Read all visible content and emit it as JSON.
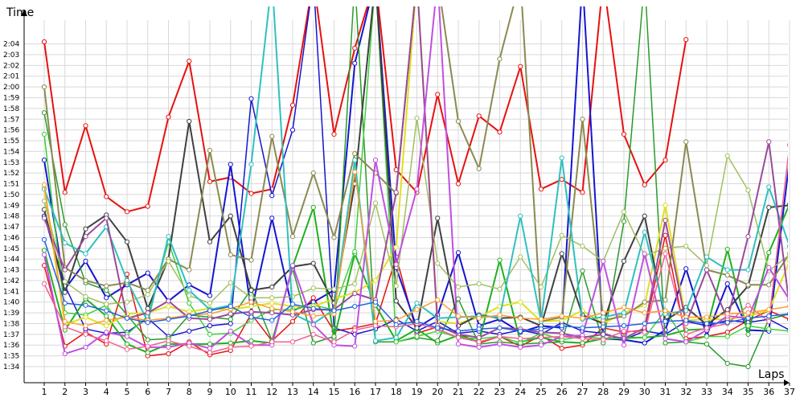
{
  "chart_data": {
    "type": "line",
    "xlabel": "Laps",
    "ylabel": "Time",
    "x": [
      1,
      2,
      3,
      4,
      5,
      6,
      7,
      8,
      9,
      10,
      11,
      12,
      13,
      14,
      15,
      16,
      17,
      18,
      19,
      20,
      21,
      22,
      23,
      24,
      25,
      26,
      27,
      28,
      29,
      30,
      31,
      32,
      33,
      34,
      35,
      36,
      37
    ],
    "ylim": [
      93,
      125
    ],
    "y_ticks": [
      {
        "v": 94,
        "label": "1:34"
      },
      {
        "v": 95,
        "label": "1:35"
      },
      {
        "v": 96,
        "label": "1:36"
      },
      {
        "v": 97,
        "label": "1:37"
      },
      {
        "v": 98,
        "label": "1:38"
      },
      {
        "v": 99,
        "label": "1:39"
      },
      {
        "v": 100,
        "label": "1:40"
      },
      {
        "v": 101,
        "label": "1:41"
      },
      {
        "v": 102,
        "label": "1:42"
      },
      {
        "v": 103,
        "label": "1:43"
      },
      {
        "v": 104,
        "label": "1:44"
      },
      {
        "v": 105,
        "label": "1:45"
      },
      {
        "v": 106,
        "label": "1:46"
      },
      {
        "v": 107,
        "label": "1:47"
      },
      {
        "v": 108,
        "label": "1:48"
      },
      {
        "v": 109,
        "label": "1:49"
      },
      {
        "v": 110,
        "label": "1:50"
      },
      {
        "v": 111,
        "label": "1:51"
      },
      {
        "v": 112,
        "label": "1:52"
      },
      {
        "v": 113,
        "label": "1:53"
      },
      {
        "v": 114,
        "label": "1:54"
      },
      {
        "v": 115,
        "label": "1:55"
      },
      {
        "v": 116,
        "label": "1:56"
      },
      {
        "v": 117,
        "label": "1:57"
      },
      {
        "v": 118,
        "label": "1:58"
      },
      {
        "v": 119,
        "label": "1:59"
      },
      {
        "v": 120,
        "label": "2:00"
      },
      {
        "v": 121,
        "label": "2:01"
      },
      {
        "v": 122,
        "label": "2:02"
      },
      {
        "v": 123,
        "label": "2:03"
      },
      {
        "v": 124,
        "label": "2:04"
      }
    ],
    "grid": true,
    "legend": "none",
    "series": [
      {
        "color": "#e81010",
        "width": 2,
        "values": [
          124.2,
          110.2,
          116.4,
          109.8,
          108.4,
          108.9,
          117.2,
          122.4,
          111.2,
          111.6,
          110.1,
          110.5,
          118.3,
          130,
          115.6,
          123.6,
          130,
          112.3,
          110.2,
          119.3,
          111.0,
          117.3,
          115.8,
          121.9,
          110.5,
          111.4,
          110.2,
          130,
          115.6,
          110.9,
          113.2,
          124.4,
          null,
          null,
          null,
          null,
          null
        ]
      },
      {
        "color": "#e81010",
        "width": 1.5,
        "values": [
          103.4,
          95.9,
          97.2,
          96.1,
          102.6,
          95.0,
          95.2,
          96.3,
          95.1,
          95.5,
          98.9,
          96.4,
          98.2,
          100.4,
          97.3,
          97.6,
          98.0,
          104.2,
          97.1,
          97.7,
          97.1,
          96.2,
          96.8,
          95.9,
          96.9,
          95.7,
          96.0,
          97.6,
          97.2,
          97.4,
          106.2,
          96.6,
          96.8,
          97.2,
          98.3,
          99.2,
          98.4
        ]
      },
      {
        "color": "#1515d0",
        "width": 2,
        "values": [
          113.2,
          101.2,
          103.8,
          100.4,
          101.6,
          102.7,
          100.1,
          101.6,
          100.6,
          112.8,
          99.1,
          107.8,
          99.2,
          100.0,
          101.1,
          122.2,
          130,
          103.2,
          97.6,
          98.8,
          104.6,
          97.8,
          98.4,
          97.2,
          97.8,
          97.6,
          130,
          96.6,
          96.5,
          96.2,
          97.4,
          103.1,
          96.9,
          101.7,
          97.4,
          97.3,
          113.2
        ]
      },
      {
        "color": "#1515d0",
        "width": 1.5,
        "values": [
          108.0,
          101.5,
          97.5,
          97.1,
          97.2,
          98.5,
          96.8,
          97.3,
          97.8,
          98.0,
          118.9,
          109.9,
          116.0,
          130,
          97.6,
          97.0,
          97.5,
          98.4,
          97.3,
          98.2,
          97.1,
          97.3,
          97.0,
          97.4,
          97.0,
          98.1,
          97.3,
          97.1,
          96.5,
          97.3,
          97.0,
          98.2,
          97.8,
          98.3,
          98.1,
          98.4,
          97.4
        ]
      },
      {
        "color": "#20b020",
        "width": 2,
        "values": [
          104.8,
          97.4,
          100.3,
          98.7,
          96.1,
          95.3,
          96.1,
          96.1,
          96.1,
          96.2,
          96.4,
          96.2,
          103.3,
          108.8,
          96.6,
          104.5,
          99.7,
          96.4,
          97.5,
          96.2,
          96.9,
          96.3,
          103.9,
          96.3,
          96.7,
          96.3,
          96.2,
          96.6,
          96.7,
          96.7,
          96.9,
          97.4,
          97.5,
          104.9,
          97.0,
          104.6,
          109.1
        ]
      },
      {
        "color": "#2a9a2a",
        "width": 1.5,
        "values": [
          117.6,
          107.2,
          101.8,
          101.1,
          98.8,
          96.5,
          96.6,
          98.8,
          98.6,
          98.4,
          101.2,
          96.4,
          103.1,
          96.2,
          96.8,
          130,
          96.3,
          96.3,
          96.7,
          96.4,
          100.3,
          96.1,
          96.3,
          96.1,
          96.2,
          96.3,
          102.9,
          96.2,
          107.5,
          130,
          96.2,
          96.3,
          96.1,
          94.3,
          94.0,
          98.4,
          98.9
        ]
      },
      {
        "color": "#3cd03c",
        "width": 1.5,
        "values": [
          115.6,
          99.0,
          98.8,
          99.7,
          97.0,
          98.7,
          105.6,
          99.9,
          97.0,
          97.1,
          98.3,
          99.3,
          99.3,
          99.7,
          99.3,
          104.7,
          130,
          96.3,
          96.8,
          97.3,
          96.7,
          96.6,
          96.8,
          96.2,
          97.1,
          96.5,
          96.8,
          96.6,
          96.6,
          96.7,
          99.2,
          96.3,
          96.8,
          96.8,
          97.8,
          97.5,
          97.3
        ]
      },
      {
        "color": "#e0e020",
        "width": 2,
        "values": [
          110.6,
          97.9,
          98.6,
          97.8,
          98.9,
          99.0,
          99.6,
          99.1,
          99.4,
          99.3,
          99.6,
          99.9,
          99.6,
          99.6,
          100.3,
          100.9,
          102.0,
          105.1,
          130,
          98.2,
          98.0,
          98.6,
          99.6,
          100.0,
          98.2,
          98.3,
          99.2,
          98.0,
          99.0,
          99.7,
          109.0,
          98.3,
          98.4,
          98.4,
          98.7,
          99.2,
          103.8
        ]
      },
      {
        "color": "#404040",
        "width": 2,
        "values": [
          108.6,
          100.9,
          106.8,
          108.1,
          105.6,
          99.4,
          104.0,
          116.8,
          105.6,
          108.0,
          101.1,
          101.4,
          103.3,
          103.6,
          99.9,
          111.0,
          130,
          100.1,
          97.6,
          107.8,
          97.8,
          98.8,
          98.5,
          98.6,
          97.8,
          104.5,
          98.8,
          98.0,
          103.8,
          108.0,
          98.3,
          99.5,
          97.9,
          99.3,
          101.5,
          108.8,
          109.0
        ]
      },
      {
        "color": "#8a8a50",
        "width": 2,
        "values": [
          120.0,
          103.2,
          102.0,
          101.5,
          101.8,
          101.1,
          104.0,
          103.0,
          114.1,
          104.4,
          103.9,
          115.4,
          106.1,
          112.0,
          106.0,
          113.8,
          112.0,
          110.1,
          130,
          130,
          116.8,
          112.4,
          122.6,
          130,
          98.2,
          98.6,
          117.0,
          98.3,
          98.7,
          100.0,
          100.2,
          114.9,
          103.0,
          102.5,
          101.6,
          101.6,
          104.5
        ]
      },
      {
        "color": "#a0c060",
        "width": 1.5,
        "values": [
          109.4,
          101.9,
          100.5,
          99.8,
          100.0,
          100.7,
          103.8,
          100.6,
          99.9,
          101.8,
          100.4,
          100.4,
          100.5,
          101.3,
          101.2,
          101.7,
          109.2,
          101.5,
          117.1,
          103.6,
          101.4,
          101.7,
          101.2,
          104.2,
          101.4,
          106.2,
          105.2,
          103.8,
          108.4,
          104.3,
          105.0,
          105.2,
          103.4,
          113.6,
          110.4,
          102.9,
          104.4
        ]
      },
      {
        "color": "#30c0c0",
        "width": 2,
        "values": [
          110.5,
          105.5,
          104.5,
          107.0,
          102.0,
          98.2,
          106.1,
          101.1,
          99.3,
          99.7,
          112.8,
          130,
          98.9,
          98.0,
          99.3,
          113.2,
          96.4,
          96.7,
          99.9,
          98.5,
          98.6,
          98.7,
          98.6,
          108.0,
          98.2,
          113.4,
          98.4,
          98.6,
          99.0,
          106.5,
          98.9,
          99.2,
          104.2,
          103.0,
          103.0,
          110.7,
          105.2
        ]
      },
      {
        "color": "#9a4a9a",
        "width": 2,
        "values": [
          107.8,
          103.0,
          106.1,
          107.8,
          98.5,
          99.0,
          100.1,
          98.5,
          98.4,
          98.9,
          99.1,
          99.0,
          98.8,
          99.3,
          99.3,
          100.8,
          100.2,
          110.2,
          130,
          97.8,
          97.0,
          96.7,
          97.6,
          97.5,
          97.2,
          97.1,
          96.7,
          97.0,
          96.6,
          97.6,
          107.6,
          98.0,
          103.0,
          98.4,
          106.1,
          114.9,
          99.6
        ]
      },
      {
        "color": "#c050e0",
        "width": 2,
        "values": [
          104.4,
          95.2,
          95.8,
          97.2,
          96.8,
          95.8,
          95.8,
          96.2,
          95.7,
          97.3,
          96.0,
          96.0,
          103.4,
          97.9,
          96.0,
          95.9,
          113.2,
          103.5,
          110.5,
          130,
          96.1,
          95.8,
          96.1,
          95.8,
          96.0,
          96.8,
          96.9,
          103.8,
          96.0,
          104.5,
          96.6,
          96.3,
          97.4,
          98.7,
          98.5,
          103.2,
          100.2
        ]
      },
      {
        "color": "#f06090",
        "width": 1.5,
        "values": [
          101.7,
          97.7,
          97.0,
          96.4,
          95.6,
          95.9,
          96.4,
          95.9,
          95.3,
          95.8,
          95.9,
          96.3,
          96.3,
          97.0,
          96.3,
          97.4,
          97.8,
          97.7,
          98.0,
          97.5,
          96.7,
          96.3,
          96.8,
          96.6,
          96.7,
          96.8,
          96.6,
          96.5,
          97.3,
          97.2,
          104.5,
          97.0,
          97.6,
          98.0,
          99.7,
          98.2,
          114.6
        ]
      },
      {
        "color": "#ff9a30",
        "width": 1.5,
        "values": [
          110.9,
          98.2,
          97.8,
          98.3,
          98.6,
          98.3,
          98.5,
          98.8,
          98.9,
          99.4,
          100.0,
          99.4,
          99.1,
          98.7,
          98.9,
          112.1,
          98.2,
          98.3,
          99.3,
          100.2,
          98.7,
          98.5,
          98.8,
          98.5,
          98.4,
          98.7,
          98.5,
          99.0,
          99.5,
          99.0,
          99.2,
          98.6,
          98.6,
          98.9,
          99.0,
          99.3,
          99.6
        ]
      },
      {
        "color": "#2060e0",
        "width": 1.5,
        "values": [
          105.8,
          99.9,
          99.7,
          99.2,
          98.5,
          98.1,
          98.4,
          98.7,
          99.2,
          99.6,
          98.6,
          98.3,
          99.8,
          99.4,
          99.2,
          99.6,
          100.0,
          97.9,
          98.2,
          97.6,
          97.3,
          97.5,
          97.6,
          97.3,
          97.5,
          97.8,
          97.6,
          97.7,
          97.8,
          98.0,
          98.2,
          98.3,
          98.0,
          98.1,
          98.5,
          98.7,
          98.9
        ]
      }
    ]
  }
}
